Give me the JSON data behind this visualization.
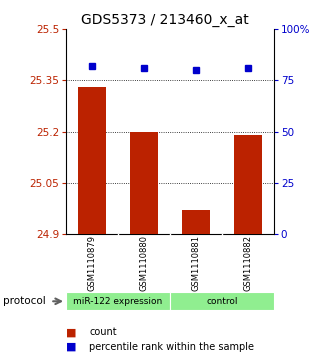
{
  "title": "GDS5373 / 213460_x_at",
  "samples": [
    "GSM1110879",
    "GSM1110880",
    "GSM1110881",
    "GSM1110882"
  ],
  "bar_values": [
    25.33,
    25.2,
    24.97,
    25.19
  ],
  "percentile_values": [
    82,
    81,
    80,
    81
  ],
  "ylim_left": [
    24.9,
    25.5
  ],
  "ylim_right": [
    0,
    100
  ],
  "yticks_left": [
    24.9,
    25.05,
    25.2,
    25.35,
    25.5
  ],
  "yticks_right": [
    0,
    25,
    50,
    75,
    100
  ],
  "ytick_labels_right": [
    "0",
    "25",
    "50",
    "75",
    "100%"
  ],
  "bar_color": "#bb2200",
  "percentile_color": "#0000cc",
  "bar_width": 0.55,
  "group_labels": [
    "miR-122 expression",
    "control"
  ],
  "group_color": "#90ee90",
  "protocol_label": "protocol",
  "legend_count_label": "count",
  "legend_percentile_label": "percentile rank within the sample",
  "background_color": "#ffffff",
  "plot_bg_color": "#ffffff",
  "label_area_bg": "#c0c0c0",
  "title_fontsize": 10,
  "tick_fontsize": 7.5,
  "sample_fontsize": 6,
  "legend_fontsize": 7,
  "proto_fontsize": 6.5
}
